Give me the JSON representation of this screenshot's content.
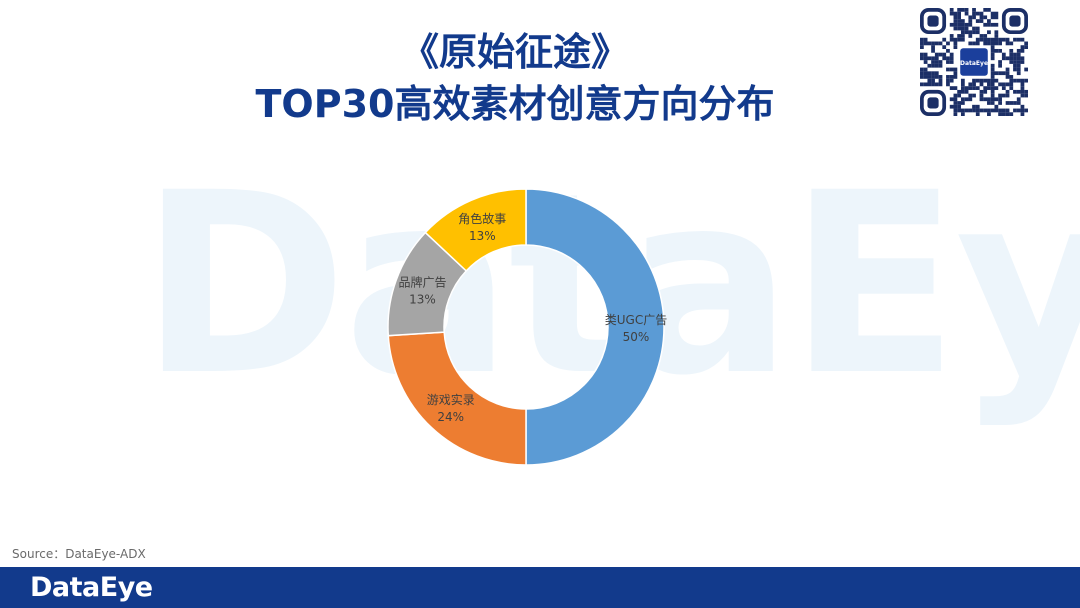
{
  "watermark": "DataEye",
  "title": {
    "line1": "《原始征途》",
    "line2": "TOP30高效素材创意方向分布"
  },
  "qr": {
    "center_label": "DataEye"
  },
  "chart_data": {
    "type": "pie",
    "variant": "donut",
    "title": "",
    "start": "12 o'clock, clockwise",
    "slices": [
      {
        "label": "类UGC广告",
        "value": 50,
        "percent_label": "50%",
        "color": "#5b9bd5"
      },
      {
        "label": "游戏实录",
        "value": 24,
        "percent_label": "24%",
        "color": "#ed7d31"
      },
      {
        "label": "品牌广告",
        "value": 13,
        "percent_label": "13%",
        "color": "#a5a5a5"
      },
      {
        "label": "角色故事",
        "value": 13,
        "percent_label": "13%",
        "color": "#ffc000"
      }
    ],
    "data_labels": "category name and percent on each slice",
    "legend": "none"
  },
  "source": "Source：DataEye-ADX",
  "footer": {
    "brand": "DataEye",
    "bar_color": "#123a8c"
  }
}
